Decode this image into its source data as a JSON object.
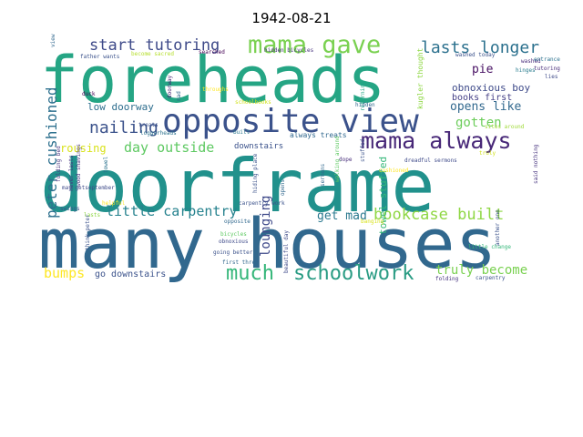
{
  "chart_data": {
    "type": "wordcloud",
    "title": "1942-08-21",
    "words": [
      {
        "text": "many houses",
        "color": "#31688e"
      },
      {
        "text": "doorframe",
        "color": "#21918c"
      },
      {
        "text": "foreheads",
        "color": "#25a584"
      },
      {
        "text": "opposite view",
        "color": "#3b528b"
      },
      {
        "text": "mama gave",
        "color": "#7ad151"
      },
      {
        "text": "mama always",
        "color": "#482878"
      },
      {
        "text": "schoolwork",
        "color": "#2a9c84"
      },
      {
        "text": "much",
        "color": "#34b679"
      },
      {
        "text": "start tutoring",
        "color": "#3e4a89"
      },
      {
        "text": "lasts longer",
        "color": "#2c718e"
      },
      {
        "text": "bookcase built",
        "color": "#8fd744"
      },
      {
        "text": "nailing",
        "color": "#3b528b"
      },
      {
        "text": "peter cushioned",
        "color": "#2d708e"
      },
      {
        "text": "day outside",
        "color": "#5ec962"
      },
      {
        "text": "little carpentry",
        "color": "#26828e"
      },
      {
        "text": "lounging",
        "color": "#3e4989"
      },
      {
        "text": "get mad",
        "color": "#2a788e"
      },
      {
        "text": "truly become",
        "color": "#7ad151"
      },
      {
        "text": "bumps",
        "color": "#fde725"
      },
      {
        "text": "go downstairs",
        "color": "#3b528b"
      },
      {
        "text": "towel stuffed",
        "color": "#35b779"
      },
      {
        "text": "rousing",
        "color": "#d8e219"
      },
      {
        "text": "gotten",
        "color": "#6ccd5a"
      },
      {
        "text": "opens like",
        "color": "#31688e"
      },
      {
        "text": "obnoxious boy",
        "color": "#3e4a89"
      },
      {
        "text": "books first",
        "color": "#433e85"
      },
      {
        "text": "pie",
        "color": "#471063"
      },
      {
        "text": "low doorway",
        "color": "#2e6e8e"
      },
      {
        "text": "downstairs",
        "color": "#3b528b"
      },
      {
        "text": "always treats",
        "color": "#31688e"
      },
      {
        "text": "kugler thought",
        "color": "#8fd744"
      },
      {
        "text": "returning",
        "color": "#21a585"
      },
      {
        "text": "hidden bicycles",
        "color": "#46327e"
      },
      {
        "text": "father wants",
        "color": "#3b528b"
      },
      {
        "text": "become sacred",
        "color": "#b5de2b"
      },
      {
        "text": "searched",
        "color": "#440154"
      },
      {
        "text": "washed",
        "color": "#472d7b"
      },
      {
        "text": "washed today",
        "color": "#3b528b"
      },
      {
        "text": "entrance",
        "color": "#2c728e"
      },
      {
        "text": "tutoring",
        "color": "#472c7a"
      },
      {
        "text": "lies",
        "color": "#3e4a89"
      },
      {
        "text": "hinges",
        "color": "#287c8e"
      },
      {
        "text": "view",
        "color": "#31688e"
      },
      {
        "text": "duck",
        "color": "#440154"
      },
      {
        "text": "doorway",
        "color": "#482173"
      },
      {
        "text": "mad",
        "color": "#31688e"
      },
      {
        "text": "throughs",
        "color": "#fde725"
      },
      {
        "text": "schoolbooks",
        "color": "#d0e11c"
      },
      {
        "text": "treats",
        "color": "#3b528b"
      },
      {
        "text": "loggerheads",
        "color": "#2c728e"
      },
      {
        "text": "built",
        "color": "#2a788e"
      },
      {
        "text": "hidden",
        "color": "#31688e"
      },
      {
        "text": "helpful",
        "color": "#fde725"
      },
      {
        "text": "dope",
        "color": "#472d7b"
      },
      {
        "text": "folding bed",
        "color": "#46337f"
      },
      {
        "text": "towel",
        "color": "#2c728e"
      },
      {
        "text": "hiding place",
        "color": "#3b528b"
      },
      {
        "text": "opens",
        "color": "#31688e"
      },
      {
        "text": "sermons",
        "color": "#31688e"
      },
      {
        "text": "walking around",
        "color": "#5ec962"
      },
      {
        "text": "stuffed",
        "color": "#3b528b"
      },
      {
        "text": "cushioned",
        "color": "#fde725"
      },
      {
        "text": "dreadful sermons",
        "color": "#3e4a89"
      },
      {
        "text": "truly",
        "color": "#d0e11c"
      },
      {
        "text": "said nothing",
        "color": "#46337f"
      },
      {
        "text": "never lasts",
        "color": "#46337f"
      },
      {
        "text": "wood shavings",
        "color": "#46337f"
      },
      {
        "text": "may getseptember",
        "color": "#3e4a89"
      },
      {
        "text": "swings",
        "color": "#3b528b"
      },
      {
        "text": "lasts",
        "color": "#8fd744"
      },
      {
        "text": "think peter",
        "color": "#3b528b"
      },
      {
        "text": "opposite",
        "color": "#31688e"
      },
      {
        "text": "bicycles",
        "color": "#5ec962"
      },
      {
        "text": "obnoxious",
        "color": "#3e4a89"
      },
      {
        "text": "going better",
        "color": "#3b528b"
      },
      {
        "text": "carpentry work",
        "color": "#3b528b"
      },
      {
        "text": "first three",
        "color": "#31688e"
      },
      {
        "text": "beautiful day",
        "color": "#3e4a89"
      },
      {
        "text": "banging",
        "color": "#d8e219"
      },
      {
        "text": "another one",
        "color": "#3b528b"
      },
      {
        "text": "little change",
        "color": "#35b779"
      },
      {
        "text": "folding",
        "color": "#46337f"
      },
      {
        "text": "carpentry",
        "color": "#3b528b"
      },
      {
        "text": "sites around",
        "color": "#a0da39"
      }
    ]
  }
}
